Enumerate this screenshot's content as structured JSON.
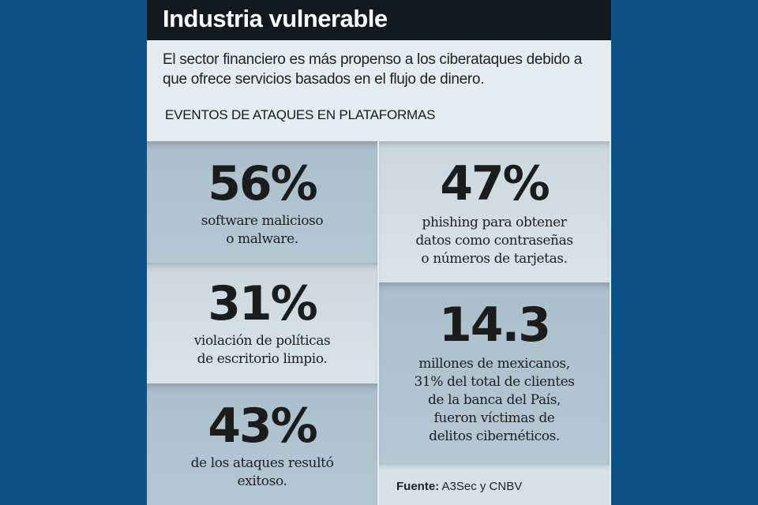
{
  "header": {
    "title": "Industria vulnerable"
  },
  "intro": {
    "text": "El sector financiero es más propenso a los ciberataques debido a que ofrece servicios basados en el flujo de dinero.",
    "section_label": "EVENTOS DE ATAQUES EN PLATAFORMAS"
  },
  "stats": [
    {
      "value": "56%",
      "lines": [
        "software malicioso",
        "o malware."
      ]
    },
    {
      "value": "47%",
      "lines": [
        "phishing para obtener",
        "datos como contraseñas",
        "o números de tarjetas."
      ]
    },
    {
      "value": "31%",
      "lines": [
        "violación de políticas",
        "de escritorio limpio."
      ]
    },
    {
      "value": "14.3",
      "lines": [
        "millones de mexicanos,",
        "31% del total de clientes",
        "de la banca del País,",
        "fueron víctimas de",
        "delitos cibernéticos."
      ]
    },
    {
      "value": "43%",
      "lines": [
        "de los ataques resultó",
        "exitoso."
      ]
    }
  ],
  "source": {
    "label": "Fuente:",
    "text": "A3Sec y CNBV"
  },
  "colors": {
    "background": "#0c5187",
    "header": "#101a20",
    "panel": "#e4ebf1"
  }
}
